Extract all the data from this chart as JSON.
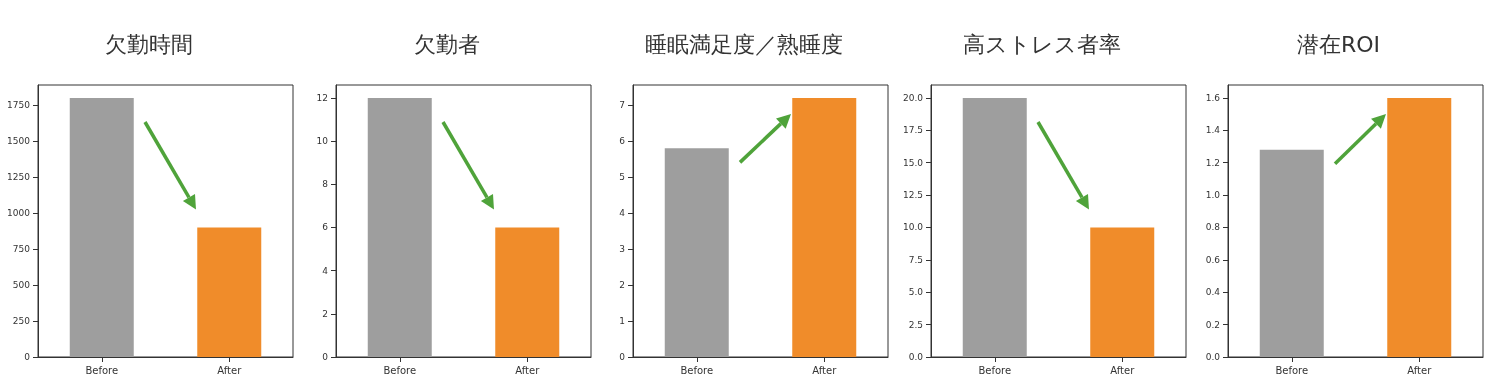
{
  "chart_data": [
    {
      "type": "bar",
      "title": "欠勤時間",
      "categories": [
        "Before",
        "After"
      ],
      "values": [
        1800,
        900
      ],
      "colors": [
        "#9e9e9e",
        "#f08c2a"
      ],
      "ylim": [
        0,
        1890
      ],
      "yticks": [
        0,
        250,
        500,
        750,
        1000,
        1250,
        1500,
        1750
      ],
      "grid": false
    },
    {
      "type": "bar",
      "title": "欠勤者",
      "categories": [
        "Before",
        "After"
      ],
      "values": [
        12,
        6
      ],
      "colors": [
        "#9e9e9e",
        "#f08c2a"
      ],
      "ylim": [
        0,
        12.6
      ],
      "yticks": [
        0,
        2,
        4,
        6,
        8,
        10,
        12
      ],
      "grid": false
    },
    {
      "type": "bar",
      "title": "睡眠満足度／熟睡度",
      "categories": [
        "Before",
        "After"
      ],
      "values": [
        5.8,
        7.2
      ],
      "colors": [
        "#9e9e9e",
        "#f08c2a"
      ],
      "ylim": [
        0,
        7.56
      ],
      "yticks": [
        0,
        1,
        2,
        3,
        4,
        5,
        6,
        7
      ],
      "grid": false
    },
    {
      "type": "bar",
      "title": "高ストレス者率",
      "categories": [
        "Before",
        "After"
      ],
      "values": [
        20,
        10
      ],
      "colors": [
        "#9e9e9e",
        "#f08c2a"
      ],
      "ylim": [
        0,
        21
      ],
      "yticks": [
        {
          "value": 0,
          "label": "0.0"
        },
        {
          "value": 2.5,
          "label": "2.5"
        },
        {
          "value": 5,
          "label": "5.0"
        },
        {
          "value": 7.5,
          "label": "7.5"
        },
        {
          "value": 10,
          "label": "10.0"
        },
        {
          "value": 12.5,
          "label": "12.5"
        },
        {
          "value": 15,
          "label": "15.0"
        },
        {
          "value": 17.5,
          "label": "17.5"
        },
        {
          "value": 20,
          "label": "20.0"
        }
      ],
      "grid": false
    },
    {
      "type": "bar",
      "title": "潜在ROI",
      "categories": [
        "Before",
        "After"
      ],
      "values": [
        1.28,
        1.6
      ],
      "colors": [
        "#9e9e9e",
        "#f08c2a"
      ],
      "ylim": [
        0,
        1.68
      ],
      "yticks": [
        {
          "value": 0,
          "label": "0.0"
        },
        {
          "value": 0.2,
          "label": "0.2"
        },
        {
          "value": 0.4,
          "label": "0.4"
        },
        {
          "value": 0.6,
          "label": "0.6"
        },
        {
          "value": 0.8,
          "label": "0.8"
        },
        {
          "value": 1,
          "label": "1.0"
        },
        {
          "value": 1.2,
          "label": "1.2"
        },
        {
          "value": 1.4,
          "label": "1.4"
        },
        {
          "value": 1.6,
          "label": "1.6"
        }
      ],
      "grid": false
    }
  ]
}
